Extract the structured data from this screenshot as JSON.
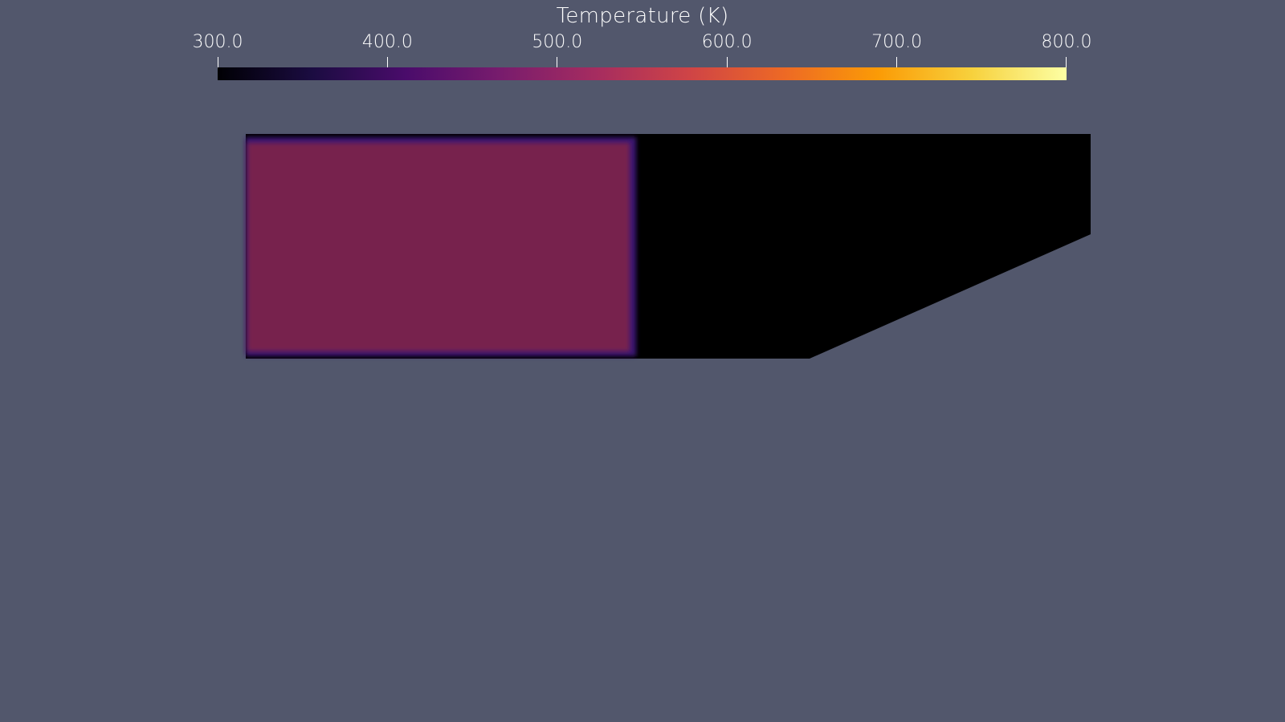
{
  "colorbar": {
    "title": "Temperature (K)",
    "ticks": [
      {
        "label": "300.0",
        "value": 300
      },
      {
        "label": "400.0",
        "value": 400
      },
      {
        "label": "500.0",
        "value": 500
      },
      {
        "label": "600.0",
        "value": 600
      },
      {
        "label": "700.0",
        "value": 700
      },
      {
        "label": "800.0",
        "value": 800
      }
    ],
    "range": [
      300,
      800
    ],
    "colormap": "inferno",
    "colormap_stops": [
      "#000004",
      "#1b0c41",
      "#4a0c6b",
      "#781c6d",
      "#a52c60",
      "#cf4446",
      "#ed6925",
      "#fb9b06",
      "#f7d13d",
      "#fcffa4"
    ]
  },
  "scene": {
    "background": "#52576c",
    "domain_color": "#000000",
    "hot_region_color": "#77204d",
    "hot_region_edge_color": "#3b1473"
  }
}
